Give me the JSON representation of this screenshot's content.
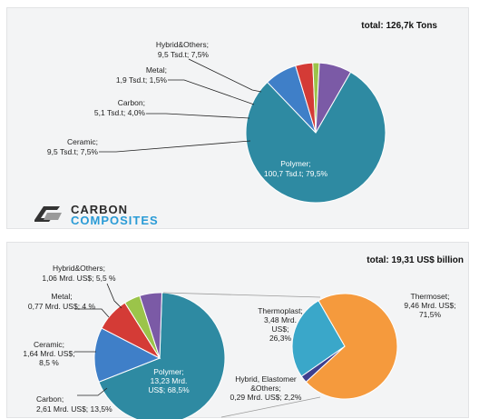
{
  "logo": {
    "line1": "CARBON",
    "line2": "COMPOSITES"
  },
  "chart_data": [
    {
      "type": "pie",
      "title": "total: 126,7k Tons",
      "slices": [
        {
          "name": "Polymer",
          "value": 79.5,
          "line1": "Polymer;",
          "line2": "100,7 Tsd.t; 79,5%",
          "color": "#2e8aa2"
        },
        {
          "name": "Ceramic",
          "value": 7.5,
          "line1": "Ceramic;",
          "line2": "9,5 Tsd.t; 7,5%",
          "color": "#3f7fc8"
        },
        {
          "name": "Carbon",
          "value": 4.0,
          "line1": "Carbon;",
          "line2": "5,1 Tsd.t; 4,0%",
          "color": "#d43b36"
        },
        {
          "name": "Metal",
          "value": 1.5,
          "line1": "Metal;",
          "line2": "1,9 Tsd.t; 1,5%",
          "color": "#9bc44a"
        },
        {
          "name": "Hybrid&Others",
          "value": 7.5,
          "line1": "Hybrid&Others;",
          "line2": "9,5 Tsd.t; 7,5%",
          "color": "#7b5aa6"
        }
      ]
    },
    {
      "type": "pie",
      "title": "total: 19,31 US$ billion",
      "slices": [
        {
          "name": "Polymer",
          "value": 68.5,
          "lines": [
            "Polymer;",
            "13,23 Mrd.",
            "US$; 68,5%"
          ],
          "color": "#2e8aa2"
        },
        {
          "name": "Carbon",
          "value": 13.5,
          "lines": [
            "Carbon;",
            "2,61 Mrd. US$; 13,5%"
          ],
          "color": "#3f7fc8"
        },
        {
          "name": "Ceramic",
          "value": 8.5,
          "lines": [
            "Ceramic;",
            "1,64 Mrd. US$;",
            "8,5 %"
          ],
          "color": "#d43b36"
        },
        {
          "name": "Metal",
          "value": 4,
          "lines": [
            "Metal;",
            "0,77 Mrd. US$; 4 %"
          ],
          "color": "#9bc44a"
        },
        {
          "name": "Hybrid&Others",
          "value": 5.5,
          "lines": [
            "Hybrid&Others;",
            "1,06 Mrd. US$; 5,5 %"
          ],
          "color": "#7b5aa6"
        }
      ]
    },
    {
      "type": "pie",
      "title": "",
      "slices": [
        {
          "name": "Thermoset",
          "value": 71.5,
          "lines": [
            "Thermoset;",
            "9,46 Mrd. US$;",
            "71,5%"
          ],
          "color": "#f59a3d"
        },
        {
          "name": "Hybrid, Elastomer &Others",
          "value": 2.2,
          "lines": [
            "Hybrid, Elastomer",
            "&Others;",
            "0,29 Mrd. US$; 2,2%"
          ],
          "color": "#3e3f8f"
        },
        {
          "name": "Thermoplast",
          "value": 26.3,
          "lines": [
            "Thermoplast;",
            "3,48 Mrd.",
            "US$;",
            "26,3%"
          ],
          "color": "#3aa7c9"
        }
      ]
    }
  ]
}
